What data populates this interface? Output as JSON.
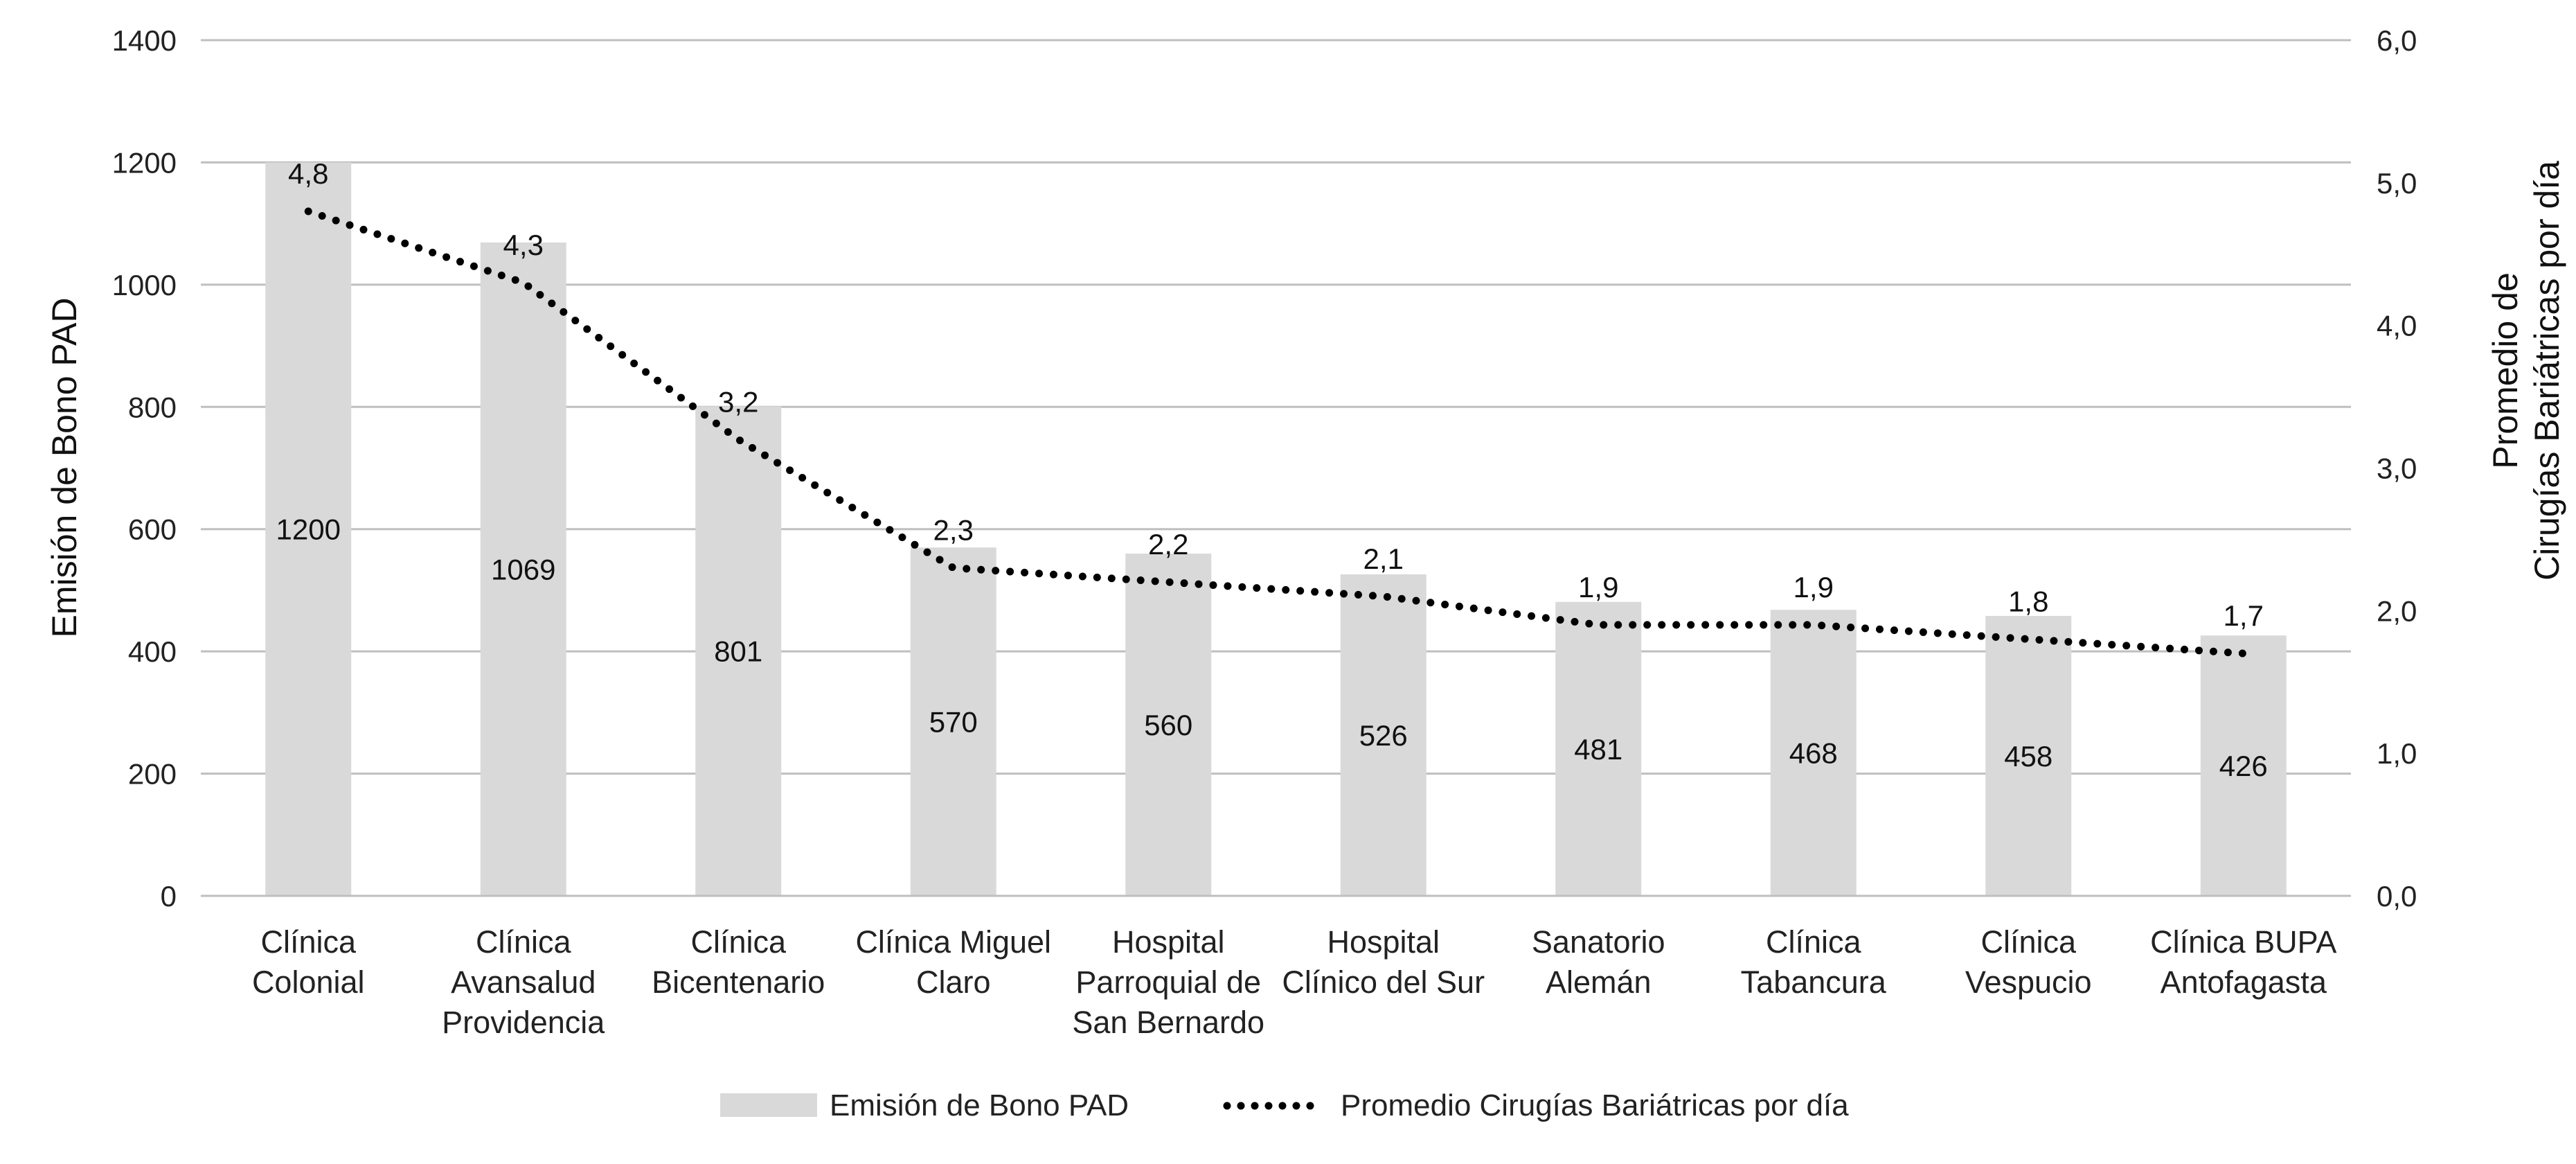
{
  "chart_data": {
    "type": "bar",
    "categories": [
      [
        "Clínica",
        "Colonial"
      ],
      [
        "Clínica",
        "Avansalud",
        "Providencia"
      ],
      [
        "Clínica",
        "Bicentenario"
      ],
      [
        "Clínica Miguel",
        "Claro"
      ],
      [
        "Hospital",
        "Parroquial de",
        "San Bernardo"
      ],
      [
        "Hospital",
        "Clínico del Sur"
      ],
      [
        "Sanatorio",
        "Alemán"
      ],
      [
        "Clínica",
        "Tabancura"
      ],
      [
        "Clínica",
        "Vespucio"
      ],
      [
        "Clínica BUPA",
        "Antofagasta"
      ]
    ],
    "series": [
      {
        "name": "Emisión de Bono PAD",
        "type": "bar",
        "axis": "left",
        "values": [
          1200,
          1069,
          801,
          570,
          560,
          526,
          481,
          468,
          458,
          426
        ],
        "labels": [
          "1200",
          "1069",
          "801",
          "570",
          "560",
          "526",
          "481",
          "468",
          "458",
          "426"
        ],
        "color": "#d9d9d9"
      },
      {
        "name": "Promedio Cirugías Bariátricas por día",
        "type": "line",
        "style": "dotted",
        "axis": "right",
        "values": [
          4.8,
          4.3,
          3.2,
          2.3,
          2.2,
          2.1,
          1.9,
          1.9,
          1.8,
          1.7
        ],
        "labels": [
          "4,8",
          "4,3",
          "3,2",
          "2,3",
          "2,2",
          "2,1",
          "1,9",
          "1,9",
          "1,8",
          "1,7"
        ],
        "color": "#000000"
      }
    ],
    "y_left": {
      "label": "Emisión de Bono PAD",
      "ylim": [
        0,
        1400
      ],
      "ticks": [
        0,
        200,
        400,
        600,
        800,
        1000,
        1200,
        1400
      ],
      "tick_labels": [
        "0",
        "200",
        "400",
        "600",
        "800",
        "1000",
        "1200",
        "1400"
      ]
    },
    "y_right": {
      "label": [
        "Promedio de",
        "Cirugías Bariátricas por día"
      ],
      "ylim": [
        0,
        6
      ],
      "ticks": [
        0,
        1,
        2,
        3,
        4,
        5,
        6
      ],
      "tick_labels": [
        "0,0",
        "1,0",
        "2,0",
        "3,0",
        "4,0",
        "5,0",
        "6,0"
      ]
    },
    "xlabel": "",
    "grid": true,
    "legend_position": "bottom",
    "grid_color": "#bfbfbf"
  }
}
